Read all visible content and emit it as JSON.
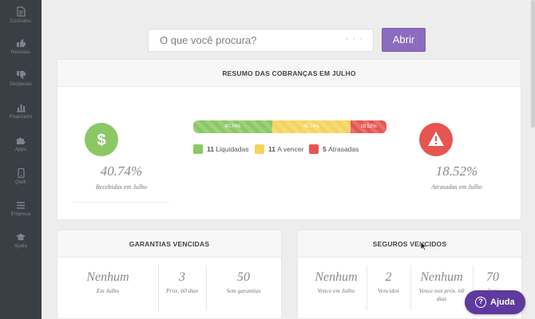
{
  "sidebar": {
    "items": [
      {
        "label": "Contratos",
        "icon": "document-icon"
      },
      {
        "label": "Receitas",
        "icon": "thumbs-up-icon"
      },
      {
        "label": "Despesas",
        "icon": "thumbs-down-icon"
      },
      {
        "label": "Financeiro",
        "icon": "bar-chart-icon"
      },
      {
        "label": "Apps",
        "icon": "puzzle-icon"
      },
      {
        "label": "Qwik",
        "icon": "mobile-icon"
      },
      {
        "label": "Empresa",
        "icon": "list-icon"
      },
      {
        "label": "Ajuda",
        "icon": "graduation-cap-icon"
      }
    ]
  },
  "search": {
    "placeholder": "O que você procura?",
    "dots": "· · ·",
    "button_label": "Abrir"
  },
  "summary": {
    "title": "RESUMO DAS COBRANÇAS EM JULHO",
    "received_pct": "40.74%",
    "received_caption": "Recebidas em Julho",
    "overdue_pct": "18.52%",
    "overdue_caption": "Atrasadas em Julho",
    "progress": [
      {
        "label": "40.74%",
        "value": 40.74,
        "color": "#8bc865"
      },
      {
        "label": "40.74%",
        "value": 40.74,
        "color": "#f5d35d"
      },
      {
        "label": "18.52%",
        "value": 18.52,
        "color": "#e65550"
      }
    ],
    "legend": [
      {
        "count": "11",
        "label": "Liquidadas",
        "color": "#8bc865"
      },
      {
        "count": "11",
        "label": "A vencer",
        "color": "#f5d35d"
      },
      {
        "count": "5",
        "label": "Atrasadas",
        "color": "#e65550"
      }
    ]
  },
  "garantias": {
    "title": "GARANTIAS VENCIDAS",
    "stats": [
      {
        "value": "Nenhum",
        "caption": "Em Julho"
      },
      {
        "value": "3",
        "caption": "Próx. 60 dias"
      },
      {
        "value": "50",
        "caption": "Sem garantias"
      }
    ]
  },
  "seguros": {
    "title": "SEGUROS VENCIDOS",
    "stats": [
      {
        "value": "Nenhum",
        "caption": "Vence em Julho"
      },
      {
        "value": "2",
        "caption": "Vencidos"
      },
      {
        "value": "Nenhum",
        "caption": "Vence nos próx. 60 dias"
      },
      {
        "value": "70",
        "caption": "Sem"
      }
    ]
  },
  "help": {
    "label": "Ajuda",
    "icon_glyph": "?"
  },
  "colors": {
    "sidebar": "#3a3f45",
    "accent": "#8b6cbf",
    "help": "#5e3a9e",
    "green": "#8bc865",
    "yellow": "#f5d35d",
    "red": "#e65550"
  }
}
